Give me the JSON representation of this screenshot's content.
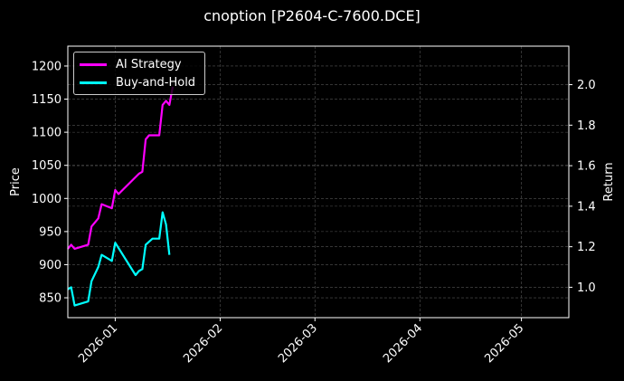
{
  "title": "cnoption [P2604-C-7600.DCE]",
  "legend": [
    {
      "label": "AI Strategy",
      "color": "#ff00ff"
    },
    {
      "label": "Buy-and-Hold",
      "color": "#00ffff"
    }
  ],
  "axes": {
    "left_label": "Price",
    "right_label": "Return",
    "left_ticks": [
      "850",
      "900",
      "950",
      "1000",
      "1050",
      "1100",
      "1150",
      "1200"
    ],
    "right_ticks": [
      "1.0",
      "1.2",
      "1.4",
      "1.6",
      "1.8",
      "2.0"
    ],
    "x_ticks": [
      "2026-01",
      "2026-02",
      "2026-03",
      "2026-04",
      "2026-05"
    ]
  },
  "chart_data": {
    "type": "line",
    "title": "cnoption [P2604-C-7600.DCE]",
    "xlabel": "",
    "ylabel": "Price",
    "y2label": "Return",
    "ylim": [
      820,
      1230
    ],
    "y2lim": [
      0.85,
      2.19
    ],
    "xlim": [
      "2025-12-18",
      "2026-05-15"
    ],
    "x_ticks": [
      "2026-01",
      "2026-02",
      "2026-03",
      "2026-04",
      "2026-05"
    ],
    "grid": true,
    "legend_position": "upper left",
    "series": [
      {
        "name": "AI Strategy",
        "color": "#ff00ff",
        "axis": "right",
        "x": [
          "2025-12-18",
          "2025-12-19",
          "2025-12-20",
          "2025-12-24",
          "2025-12-25",
          "2025-12-27",
          "2025-12-28",
          "2025-12-31",
          "2026-01-01",
          "2026-01-02",
          "2026-01-08",
          "2026-01-09",
          "2026-01-10",
          "2026-01-11",
          "2026-01-14",
          "2026-01-15",
          "2026-01-16",
          "2026-01-17",
          "2026-01-18"
        ],
        "values": [
          1.19,
          1.21,
          1.19,
          1.21,
          1.3,
          1.34,
          1.41,
          1.39,
          1.48,
          1.46,
          1.56,
          1.57,
          1.73,
          1.75,
          1.75,
          1.9,
          1.92,
          1.9,
          1.99
        ]
      },
      {
        "name": "Buy-and-Hold",
        "color": "#00ffff",
        "axis": "right",
        "x": [
          "2025-12-18",
          "2025-12-19",
          "2025-12-20",
          "2025-12-24",
          "2025-12-25",
          "2025-12-27",
          "2025-12-28",
          "2025-12-31",
          "2026-01-01",
          "2026-01-07",
          "2026-01-08",
          "2026-01-09",
          "2026-01-10",
          "2026-01-12",
          "2026-01-14",
          "2026-01-15",
          "2026-01-16",
          "2026-01-17"
        ],
        "values": [
          0.99,
          1.0,
          0.91,
          0.93,
          1.03,
          1.1,
          1.16,
          1.13,
          1.22,
          1.06,
          1.08,
          1.09,
          1.21,
          1.24,
          1.24,
          1.37,
          1.31,
          1.16
        ]
      }
    ]
  }
}
